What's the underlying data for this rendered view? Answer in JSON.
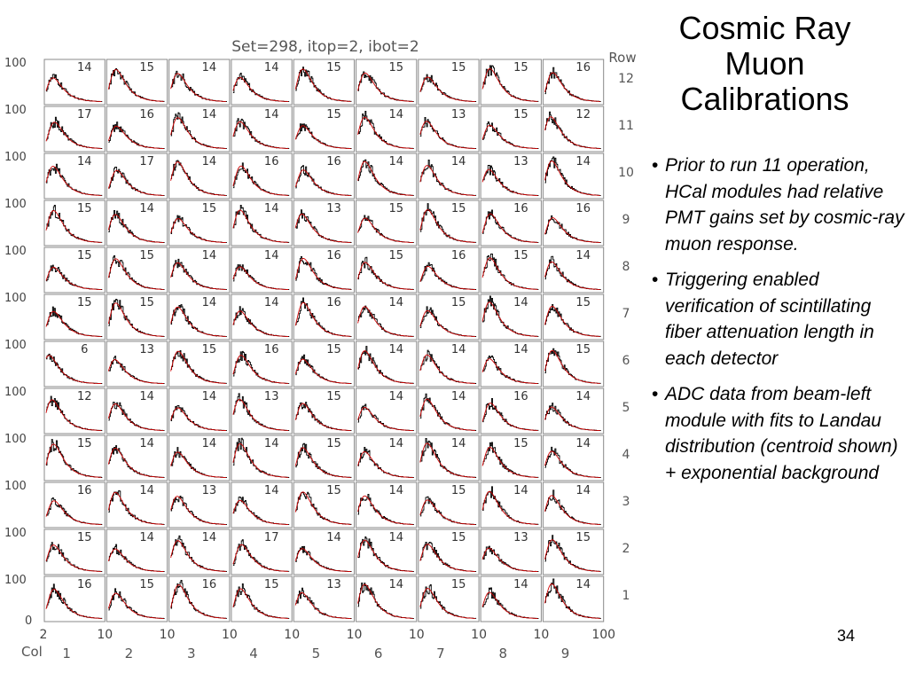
{
  "slide": {
    "title_lines": [
      "Cosmic Ray",
      "Muon",
      "Calibrations"
    ],
    "bullets": [
      "Prior to run 11 operation, HCal modules had relative PMT gains set by cosmic-ray muon response.",
      "Triggering enabled verification of scintillating fiber attenuation length in each detector",
      "ADC data from beam-left module with fits to Landau distribution (centroid shown) + exponential background"
    ],
    "bullet_glyph": "•",
    "page_number": "34"
  },
  "chart_data": {
    "type": "histogram-grid",
    "title": "Set=298, itop=2, ibot=2",
    "row_header": "Row",
    "col_header": "Col",
    "rows": [
      "12",
      "11",
      "10",
      "9",
      "8",
      "7",
      "6",
      "5",
      "4",
      "3",
      "2",
      "1"
    ],
    "cols": [
      "1",
      "2",
      "3",
      "4",
      "5",
      "6",
      "7",
      "8",
      "9"
    ],
    "y_tick_labels": [
      "100",
      "0"
    ],
    "x_tick_labels": [
      "2",
      "10",
      "100"
    ],
    "x_range": [
      2,
      100
    ],
    "centroids": [
      [
        "14",
        "15",
        "14",
        "14",
        "15",
        "15",
        "15",
        "15",
        "16"
      ],
      [
        "17",
        "16",
        "14",
        "14",
        "15",
        "14",
        "13",
        "15",
        "12"
      ],
      [
        "14",
        "17",
        "14",
        "16",
        "16",
        "14",
        "14",
        "13",
        "14"
      ],
      [
        "15",
        "14",
        "15",
        "14",
        "13",
        "15",
        "15",
        "16",
        "16"
      ],
      [
        "15",
        "15",
        "14",
        "14",
        "16",
        "15",
        "16",
        "15",
        "14"
      ],
      [
        "15",
        "15",
        "14",
        "14",
        "16",
        "14",
        "15",
        "14",
        "15"
      ],
      [
        "6",
        "13",
        "15",
        "16",
        "15",
        "14",
        "14",
        "14",
        "15"
      ],
      [
        "12",
        "14",
        "14",
        "13",
        "15",
        "14",
        "14",
        "16",
        "14"
      ],
      [
        "15",
        "14",
        "14",
        "14",
        "15",
        "14",
        "14",
        "15",
        "14"
      ],
      [
        "16",
        "14",
        "13",
        "14",
        "15",
        "14",
        "15",
        "14",
        "14"
      ],
      [
        "15",
        "14",
        "14",
        "17",
        "14",
        "14",
        "15",
        "13",
        "15"
      ],
      [
        "16",
        "15",
        "16",
        "15",
        "13",
        "14",
        "15",
        "14",
        "14"
      ]
    ],
    "colors": {
      "data": "#000000",
      "fit": "#cc0000",
      "frame": "#888888",
      "label": "#555555"
    }
  }
}
